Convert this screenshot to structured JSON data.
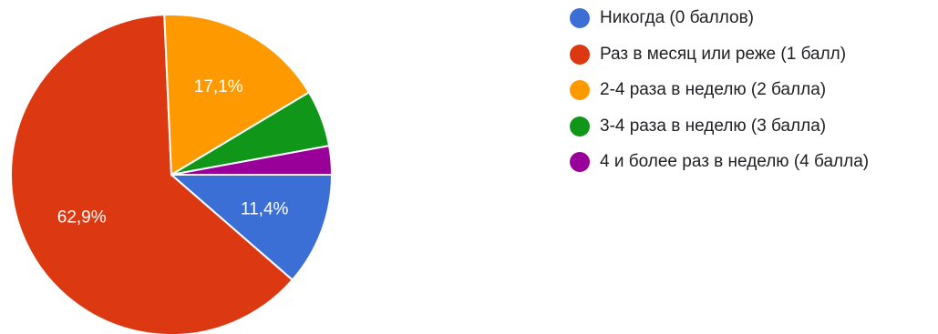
{
  "chart_data": {
    "type": "pie",
    "title": "",
    "legend_position": "right",
    "start_angle_deg": 90,
    "direction": "clockwise",
    "slices": [
      {
        "label": "Никогда (0 баллов)",
        "value": 11.4,
        "value_label": "11,4%",
        "color": "#3c6fd6"
      },
      {
        "label": "Раз в месяц или реже (1 балл)",
        "value": 62.9,
        "value_label": "62,9%",
        "color": "#dc3912"
      },
      {
        "label": "2-4 раза в неделю (2 балла)",
        "value": 17.1,
        "value_label": "17,1%",
        "color": "#ff9900"
      },
      {
        "label": "3-4 раза в неделю (3 балла)",
        "value": 5.7,
        "value_label": "",
        "color": "#109618"
      },
      {
        "label": "4 и более раз в неделю (4 балла)",
        "value": 2.9,
        "value_label": "",
        "color": "#990099"
      }
    ]
  }
}
